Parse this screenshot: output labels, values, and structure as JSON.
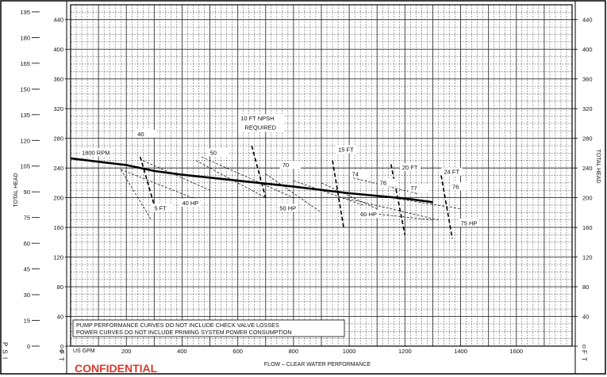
{
  "chart_data": {
    "type": "line",
    "xlabel": "FLOW – CLEAR WATER PERFORMANCE",
    "x_unit": "US GPM",
    "ylabel_left_outer": "TOTAL HEAD",
    "ylabel_left_outer_unit": "P S I",
    "ylabel_left_inner_unit": "F T",
    "ylabel_right": "TOTAL HEAD",
    "ylabel_right_unit": "F T",
    "xlim": [
      0,
      1800
    ],
    "ylim_ft": [
      0,
      460
    ],
    "x_ticks": [
      "200",
      "400",
      "600",
      "800",
      "1000",
      "1200",
      "1400",
      "1600"
    ],
    "x_tick_values": [
      200,
      400,
      600,
      800,
      1000,
      1200,
      1400,
      1600
    ],
    "x_origin_label": "0",
    "psi_ticks": [
      "0",
      "15",
      "30",
      "45",
      "60",
      "75",
      "90",
      "105",
      "120",
      "135",
      "150",
      "165",
      "180",
      "195"
    ],
    "psi_tick_values_ft": [
      0,
      34.65,
      69.3,
      103.95,
      138.6,
      173.25,
      207.9,
      242.55,
      277.2,
      311.85,
      346.5,
      381.15,
      415.8,
      450.45
    ],
    "ft_ticks": [
      "0",
      "40",
      "80",
      "120",
      "160",
      "200",
      "240",
      "280",
      "320",
      "360",
      "400",
      "440"
    ],
    "ft_tick_values": [
      0,
      40,
      80,
      120,
      160,
      200,
      240,
      280,
      320,
      360,
      400,
      440
    ],
    "grid": true,
    "series": [
      {
        "name": "1800 RPM",
        "x": [
          0,
          200,
          300,
          400,
          600,
          800,
          1000,
          1200,
          1300
        ],
        "y": [
          253,
          244,
          236,
          231,
          223,
          215,
          206,
          199,
          194
        ]
      }
    ],
    "efficiency_labels": [
      "40",
      "50",
      "70",
      "74",
      "76",
      "77",
      "76"
    ],
    "npsh_labels": [
      "5 FT",
      "10 FT NPSH REQUIRED",
      "15 FT",
      "20 FT",
      "24 FT"
    ],
    "power_labels": [
      "40 HP",
      "50 HP",
      "60 HP",
      "75 HP"
    ],
    "notes": [
      "PUMP PERFORMANCE CURVES DO NOT INCLUDE CHECK VALVE LOSSES",
      "POWER CURVES DO NOT INCLUDE PRIMING SYSTEM POWER CONSUMPTION"
    ],
    "stamp": "CONFIDENTIAL",
    "colors": {
      "grid": "#333333",
      "curve": "#000000",
      "stamp": "#d93a2b"
    }
  }
}
